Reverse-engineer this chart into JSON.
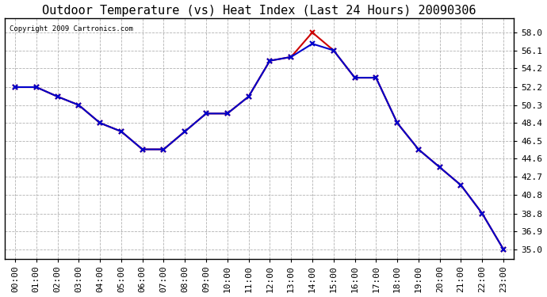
{
  "title": "Outdoor Temperature (vs) Heat Index (Last 24 Hours) 20090306",
  "copyright": "Copyright 2009 Cartronics.com",
  "hours": [
    "00:00",
    "01:00",
    "02:00",
    "03:00",
    "04:00",
    "05:00",
    "06:00",
    "07:00",
    "08:00",
    "09:00",
    "10:00",
    "11:00",
    "12:00",
    "13:00",
    "14:00",
    "15:00",
    "16:00",
    "17:00",
    "18:00",
    "19:00",
    "20:00",
    "21:00",
    "22:00",
    "23:00"
  ],
  "temp": [
    52.2,
    52.2,
    51.2,
    50.3,
    48.4,
    47.5,
    45.6,
    45.6,
    47.5,
    49.4,
    49.4,
    51.2,
    55.0,
    55.4,
    58.0,
    56.1,
    53.2,
    53.2,
    48.4,
    45.6,
    43.7,
    41.8,
    38.8,
    35.0
  ],
  "heat_index": [
    52.2,
    52.2,
    51.2,
    50.3,
    48.4,
    47.5,
    45.6,
    45.6,
    47.5,
    49.4,
    49.4,
    51.2,
    55.0,
    55.4,
    56.8,
    56.1,
    53.2,
    53.2,
    48.4,
    45.6,
    43.7,
    41.8,
    38.8,
    35.0
  ],
  "ylim": [
    34.0,
    59.5
  ],
  "yticks": [
    35.0,
    36.9,
    38.8,
    40.8,
    42.7,
    44.6,
    46.5,
    48.4,
    50.3,
    52.2,
    54.2,
    56.1,
    58.0
  ],
  "ytick_labels": [
    "35.0",
    "36.9",
    "38.8",
    "40.8",
    "42.7",
    "44.6",
    "46.5",
    "48.4",
    "50.3",
    "52.2",
    "54.2",
    "56.1",
    "58.0"
  ],
  "temp_color": "#cc0000",
  "heat_index_color": "#0000cc",
  "bg_color": "#ffffff",
  "grid_color": "#aaaaaa",
  "title_fontsize": 11,
  "label_fontsize": 8
}
